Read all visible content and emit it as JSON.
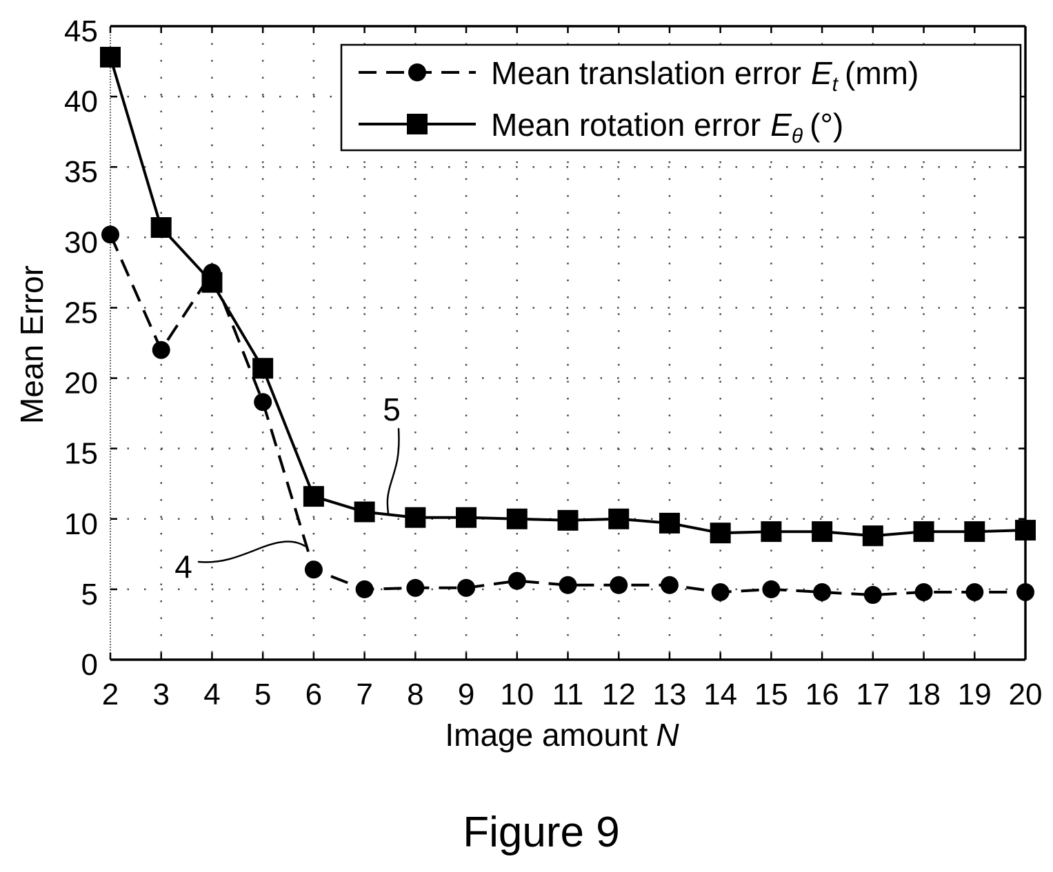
{
  "chart_data": {
    "type": "line",
    "xlabel": "Image amount",
    "xlabel_symbol": "N",
    "ylabel": "Mean Error",
    "xlim": [
      2,
      20
    ],
    "ylim": [
      0,
      45
    ],
    "xticks": [
      2,
      3,
      4,
      5,
      6,
      7,
      8,
      9,
      10,
      11,
      12,
      13,
      14,
      15,
      16,
      17,
      18,
      19,
      20
    ],
    "yticks": [
      0,
      5,
      10,
      15,
      20,
      25,
      30,
      35,
      40,
      45
    ],
    "grid": true,
    "legend_position": "top-right",
    "x": [
      2,
      3,
      4,
      5,
      6,
      7,
      8,
      9,
      10,
      11,
      12,
      13,
      14,
      15,
      16,
      17,
      18,
      19,
      20
    ],
    "series": [
      {
        "name": "Mean translation error",
        "symbol": "E",
        "subscript": "t",
        "unit": "(mm)",
        "marker": "circle",
        "line_style": "dashed",
        "color": "#000000",
        "values": [
          30.2,
          22.0,
          27.5,
          18.3,
          6.4,
          5.0,
          5.1,
          5.1,
          5.6,
          5.3,
          5.3,
          5.3,
          4.8,
          5.0,
          4.8,
          4.6,
          4.8,
          4.8,
          4.8
        ]
      },
      {
        "name": "Mean rotation error",
        "symbol": "E",
        "subscript": "θ",
        "unit": "(°)",
        "marker": "square",
        "line_style": "solid",
        "color": "#000000",
        "values": [
          42.8,
          30.7,
          26.8,
          20.7,
          11.6,
          10.5,
          10.1,
          10.1,
          10.0,
          9.9,
          10.0,
          9.7,
          9.0,
          9.1,
          9.1,
          8.8,
          9.1,
          9.1,
          9.2
        ]
      }
    ],
    "annotations": [
      {
        "text": "5"
      },
      {
        "text": "4"
      }
    ]
  },
  "caption": "Figure 9"
}
